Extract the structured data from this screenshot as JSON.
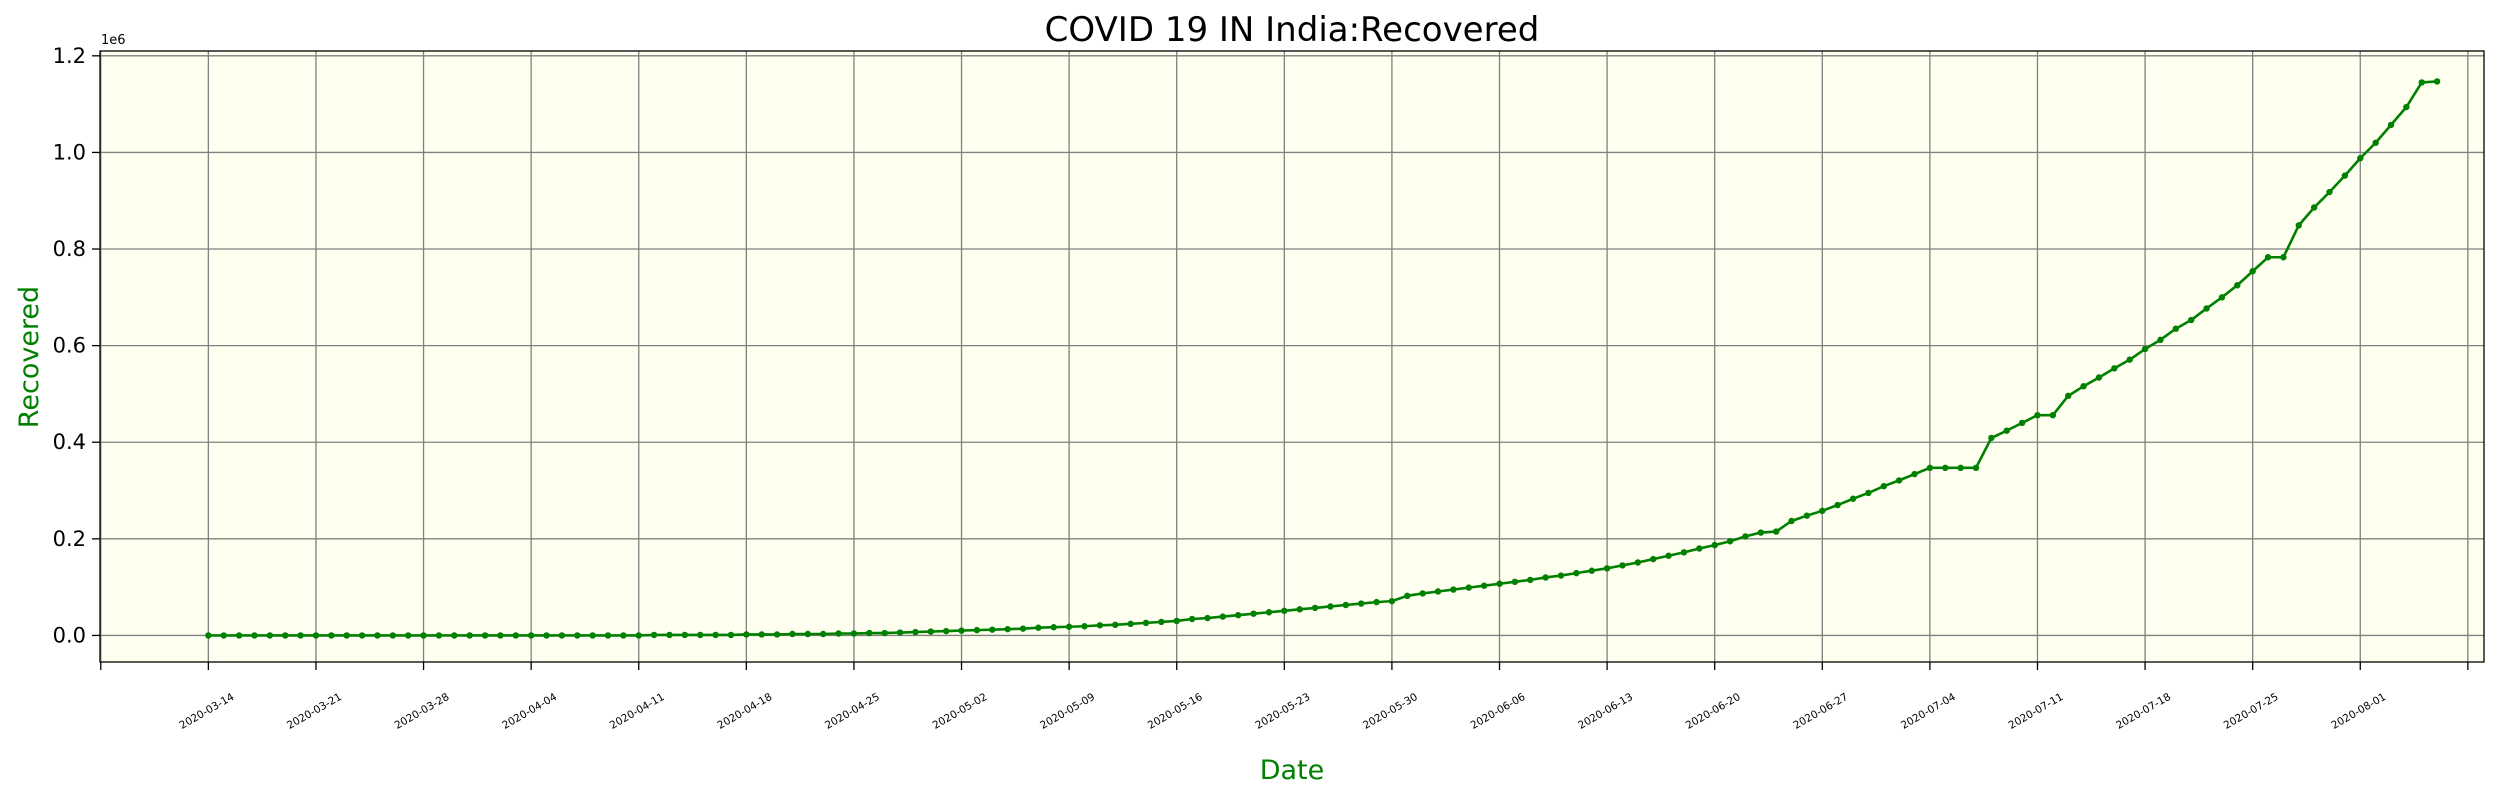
{
  "chart_data": {
    "type": "line",
    "title": "COVID 19 IN India:Recovered",
    "xlabel": "Date",
    "ylabel": "Recovered",
    "y_offset_label": "1e6",
    "ylim": [
      -0.055,
      1.21
    ],
    "yticks": [
      0.0,
      0.2,
      0.4,
      0.6,
      0.8,
      1.0,
      1.2
    ],
    "ytick_labels": [
      "0.0",
      "0.2",
      "0.4",
      "0.6",
      "0.8",
      "1.0",
      "1.2"
    ],
    "xtick_labels": [
      "2020-03-14",
      "2020-03-21",
      "2020-03-28",
      "2020-04-04",
      "2020-04-11",
      "2020-04-18",
      "2020-04-25",
      "2020-05-02",
      "2020-05-09",
      "2020-05-16",
      "2020-05-23",
      "2020-05-30",
      "2020-06-06",
      "2020-06-13",
      "2020-06-20",
      "2020-06-27",
      "2020-07-04",
      "2020-07-11",
      "2020-07-18",
      "2020-07-25",
      "2020-08-01"
    ],
    "x_start": "2020-03-14",
    "x_end": "2020-08-02",
    "grid": true,
    "colors": {
      "line": "#008000",
      "plot_background": "#fffff0",
      "grid": "#808080",
      "axis_label": "#008000"
    },
    "series": [
      {
        "values": [
          0.0,
          0.0,
          0.0,
          0.0,
          0.0,
          0.0,
          0.0,
          0.0,
          0.0,
          0.0,
          0.0,
          0.0,
          0.0,
          0.0,
          0.0,
          0.0,
          0.0,
          0.0,
          0.0,
          0.0,
          0.0,
          0.0,
          0.0,
          0.0,
          0.0,
          0.0,
          0.0,
          0.0,
          0.0,
          0.001,
          0.001,
          0.001,
          0.001,
          0.001,
          0.001,
          0.002,
          0.002,
          0.002,
          0.003,
          0.003,
          0.003,
          0.004,
          0.004,
          0.005,
          0.005,
          0.006,
          0.007,
          0.008,
          0.009,
          0.01,
          0.011,
          0.012,
          0.013,
          0.014,
          0.016,
          0.017,
          0.018,
          0.019,
          0.021,
          0.022,
          0.024,
          0.026,
          0.028,
          0.03,
          0.034,
          0.036,
          0.039,
          0.042,
          0.045,
          0.048,
          0.051,
          0.054,
          0.057,
          0.06,
          0.063,
          0.066,
          0.069,
          0.071,
          0.082,
          0.087,
          0.091,
          0.095,
          0.099,
          0.103,
          0.107,
          0.111,
          0.115,
          0.12,
          0.124,
          0.129,
          0.134,
          0.139,
          0.145,
          0.151,
          0.158,
          0.165,
          0.172,
          0.18,
          0.187,
          0.195,
          0.205,
          0.213,
          0.215,
          0.237,
          0.248,
          0.258,
          0.27,
          0.283,
          0.295,
          0.309,
          0.321,
          0.334,
          0.347,
          0.347,
          0.347,
          0.347,
          0.409,
          0.424,
          0.44,
          0.456,
          0.456,
          0.496,
          0.516,
          0.534,
          0.553,
          0.571,
          0.593,
          0.612,
          0.635,
          0.653,
          0.677,
          0.7,
          0.725,
          0.754,
          0.783,
          0.783,
          0.849,
          0.886,
          0.918,
          0.952,
          0.988,
          1.02,
          1.057,
          1.094,
          1.145,
          1.147
        ]
      }
    ]
  }
}
